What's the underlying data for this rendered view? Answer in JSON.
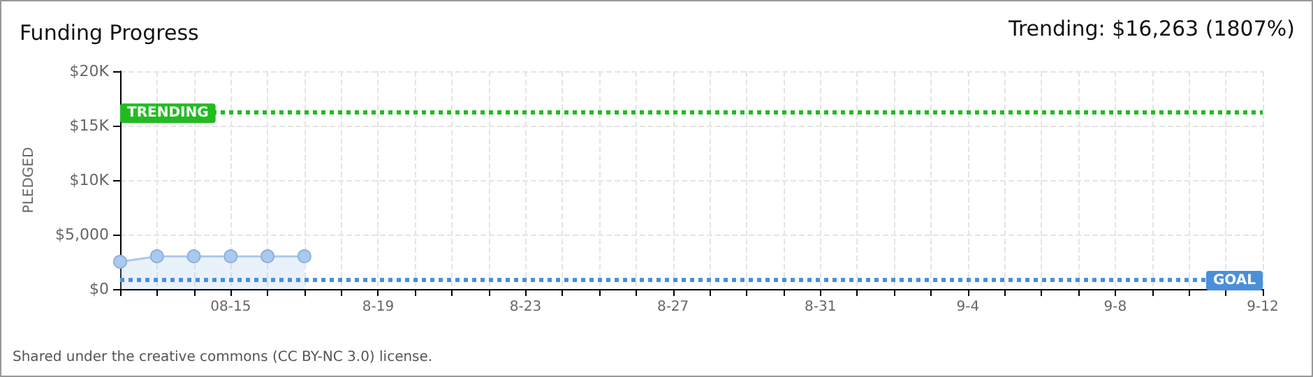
{
  "chart_data": {
    "type": "area",
    "title": "Funding Progress",
    "ylabel": "PLEDGED",
    "annotations": [
      "Trending: $16,263 (1807%)",
      "Shared under the creative commons (CC BY-NC 3.0) license."
    ],
    "x": [
      "--08-12",
      "--08-13",
      "--08-14",
      "--08-15",
      "--08-16",
      "--08-17"
    ],
    "series": [
      {
        "color": "#a9c9ef",
        "values": [
          2500,
          3000,
          3000,
          3000,
          3000,
          3000
        ]
      }
    ],
    "xlim": [
      "--08-12",
      "--09-12"
    ],
    "xticks": [
      {
        "value": "--08-12",
        "label": null
      },
      {
        "value": "--08-13",
        "label": null
      },
      {
        "value": "--08-14",
        "label": null
      },
      {
        "value": "--08-15",
        "label": "08-15"
      },
      {
        "value": "--08-16",
        "label": null
      },
      {
        "value": "--08-17",
        "label": null
      },
      {
        "value": "--08-18",
        "label": null
      },
      {
        "value": "--08-19",
        "label": "8-19"
      },
      {
        "value": "--08-20",
        "label": null
      },
      {
        "value": "--08-21",
        "label": null
      },
      {
        "value": "--08-22",
        "label": null
      },
      {
        "value": "--08-23",
        "label": "8-23"
      },
      {
        "value": "--08-24",
        "label": null
      },
      {
        "value": "--08-25",
        "label": null
      },
      {
        "value": "--08-26",
        "label": null
      },
      {
        "value": "--08-27",
        "label": "8-27"
      },
      {
        "value": "--08-28",
        "label": null
      },
      {
        "value": "--08-29",
        "label": null
      },
      {
        "value": "--08-30",
        "label": null
      },
      {
        "value": "--08-31",
        "label": "8-31"
      },
      {
        "value": "--09-01",
        "label": null
      },
      {
        "value": "--09-02",
        "label": null
      },
      {
        "value": "--09-03",
        "label": null
      },
      {
        "value": "--09-04",
        "label": "9-4"
      },
      {
        "value": "--09-05",
        "label": null
      },
      {
        "value": "--09-06",
        "label": null
      },
      {
        "value": "--09-07",
        "label": null
      },
      {
        "value": "--09-08",
        "label": "9-8"
      },
      {
        "value": "--09-09",
        "label": null
      },
      {
        "value": "--09-10",
        "label": null
      },
      {
        "value": "--09-11",
        "label": null
      },
      {
        "value": "--09-12",
        "label": "9-12"
      }
    ],
    "ylim": [
      0,
      20000
    ],
    "yticks": [
      {
        "value": 0,
        "label": "$0"
      },
      {
        "value": 5000,
        "label": "$5,000"
      },
      {
        "value": 10000,
        "label": "$10K"
      },
      {
        "value": 15000,
        "label": "$15K"
      },
      {
        "value": 20000,
        "label": "$20K"
      }
    ],
    "ref_lines": [
      {
        "axis": "y",
        "value": 16263,
        "label": "TRENDING",
        "color": "#22bb22",
        "line_style": "dotted"
      },
      {
        "axis": "y",
        "value": 900,
        "label": "GOAL",
        "color": "#4a90d9",
        "line_style": "dotted"
      }
    ],
    "grid": true,
    "marker": "circle"
  }
}
